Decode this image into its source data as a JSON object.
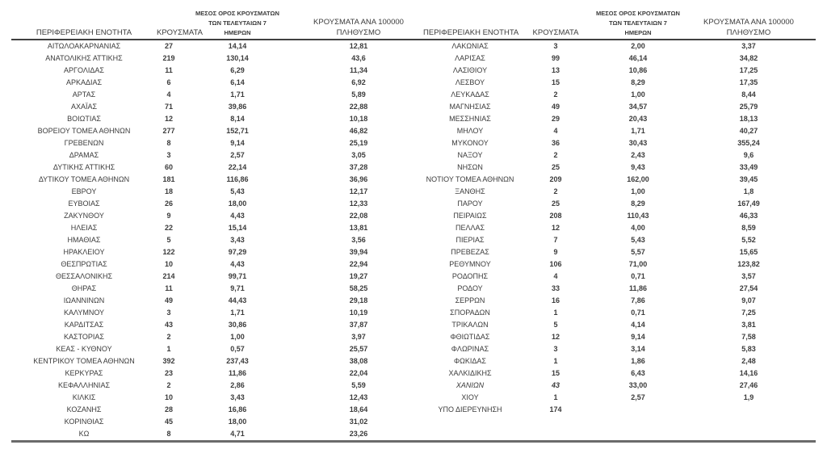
{
  "style": {
    "background": "#ffffff",
    "text_color": "#3b3b3b",
    "header_rule_color": "#404040",
    "bottom_rule_color": "#6b6b6b"
  },
  "headers": {
    "region": "ΠΕΡΙΦΕΡΕΙΑΚΗ ΕΝΟΤΗΤΑ",
    "cases": "ΚΡΟΥΣΜΑΤΑ",
    "avg7_lines": [
      "ΜΕΣΟΣ ΟΡΟΣ ΚΡΟΥΣΜΑΤΩΝ",
      "ΤΩΝ ΤΕΛΕΥΤΑΙΩΝ 7",
      "ΗΜΕΡΩΝ"
    ],
    "per100k_lines": [
      "ΚΡΟΥΣΜΑΤΑ ΑΝΑ 100000",
      "ΠΛΗΘΥΣΜΟ"
    ]
  },
  "left_table": {
    "rows": [
      {
        "region": "ΑΙΤΩΛΟΑΚΑΡΝΑΝΙΑΣ",
        "cases": "27",
        "avg7": "14,14",
        "per100k": "12,81"
      },
      {
        "region": "ΑΝΑΤΟΛΙΚΗΣ ΑΤΤΙΚΗΣ",
        "cases": "219",
        "avg7": "130,14",
        "per100k": "43,6"
      },
      {
        "region": "ΑΡΓΟΛΙΔΑΣ",
        "cases": "11",
        "avg7": "6,29",
        "per100k": "11,34"
      },
      {
        "region": "ΑΡΚΑΔΙΑΣ",
        "cases": "6",
        "avg7": "6,14",
        "per100k": "6,92"
      },
      {
        "region": "ΑΡΤΑΣ",
        "cases": "4",
        "avg7": "1,71",
        "per100k": "5,89"
      },
      {
        "region": "ΑΧΑΪΑΣ",
        "cases": "71",
        "avg7": "39,86",
        "per100k": "22,88"
      },
      {
        "region": "ΒΟΙΩΤΙΑΣ",
        "cases": "12",
        "avg7": "8,14",
        "per100k": "10,18"
      },
      {
        "region": "ΒΟΡΕΙΟΥ ΤΟΜΕΑ ΑΘΗΝΩΝ",
        "cases": "277",
        "avg7": "152,71",
        "per100k": "46,82"
      },
      {
        "region": "ΓΡΕΒΕΝΩΝ",
        "cases": "8",
        "avg7": "9,14",
        "per100k": "25,19"
      },
      {
        "region": "ΔΡΑΜΑΣ",
        "cases": "3",
        "avg7": "2,57",
        "per100k": "3,05"
      },
      {
        "region": "ΔΥΤΙΚΗΣ ΑΤΤΙΚΗΣ",
        "cases": "60",
        "avg7": "22,14",
        "per100k": "37,28"
      },
      {
        "region": "ΔΥΤΙΚΟΥ ΤΟΜΕΑ ΑΘΗΝΩΝ",
        "cases": "181",
        "avg7": "116,86",
        "per100k": "36,96"
      },
      {
        "region": "ΕΒΡΟΥ",
        "cases": "18",
        "avg7": "5,43",
        "per100k": "12,17"
      },
      {
        "region": "ΕΥΒΟΙΑΣ",
        "cases": "26",
        "avg7": "18,00",
        "per100k": "12,33"
      },
      {
        "region": "ΖΑΚΥΝΘΟΥ",
        "cases": "9",
        "avg7": "4,43",
        "per100k": "22,08"
      },
      {
        "region": "ΗΛΕΙΑΣ",
        "cases": "22",
        "avg7": "15,14",
        "per100k": "13,81"
      },
      {
        "region": "ΗΜΑΘΙΑΣ",
        "cases": "5",
        "avg7": "3,43",
        "per100k": "3,56"
      },
      {
        "region": "ΗΡΑΚΛΕΙΟΥ",
        "cases": "122",
        "avg7": "97,29",
        "per100k": "39,94"
      },
      {
        "region": "ΘΕΣΠΡΩΤΙΑΣ",
        "cases": "10",
        "avg7": "4,43",
        "per100k": "22,94"
      },
      {
        "region": "ΘΕΣΣΑΛΟΝΙΚΗΣ",
        "cases": "214",
        "avg7": "99,71",
        "per100k": "19,27"
      },
      {
        "region": "ΘΗΡΑΣ",
        "cases": "11",
        "avg7": "9,71",
        "per100k": "58,25"
      },
      {
        "region": "ΙΩΑΝΝΙΝΩΝ",
        "cases": "49",
        "avg7": "44,43",
        "per100k": "29,18"
      },
      {
        "region": "ΚΑΛΥΜΝΟΥ",
        "cases": "3",
        "avg7": "1,71",
        "per100k": "10,19"
      },
      {
        "region": "ΚΑΡΔΙΤΣΑΣ",
        "cases": "43",
        "avg7": "30,86",
        "per100k": "37,87"
      },
      {
        "region": "ΚΑΣΤΟΡΙΑΣ",
        "cases": "2",
        "avg7": "1,00",
        "per100k": "3,97"
      },
      {
        "region": "ΚΕΑΣ - ΚΥΘΝΟΥ",
        "cases": "1",
        "avg7": "0,57",
        "per100k": "25,57"
      },
      {
        "region": "ΚΕΝΤΡΙΚΟΥ ΤΟΜΕΑ ΑΘΗΝΩΝ",
        "cases": "392",
        "avg7": "237,43",
        "per100k": "38,08"
      },
      {
        "region": "ΚΕΡΚΥΡΑΣ",
        "cases": "23",
        "avg7": "11,86",
        "per100k": "22,04"
      },
      {
        "region": "ΚΕΦΑΛΛΗΝΙΑΣ",
        "cases": "2",
        "avg7": "2,86",
        "per100k": "5,59"
      },
      {
        "region": "ΚΙΛΚΙΣ",
        "cases": "10",
        "avg7": "3,43",
        "per100k": "12,43"
      },
      {
        "region": "ΚΟΖΑΝΗΣ",
        "cases": "28",
        "avg7": "16,86",
        "per100k": "18,64"
      },
      {
        "region": "ΚΟΡΙΝΘΙΑΣ",
        "cases": "45",
        "avg7": "18,00",
        "per100k": "31,02"
      },
      {
        "region": "ΚΩ",
        "cases": "8",
        "avg7": "4,71",
        "per100k": "23,26"
      }
    ]
  },
  "right_table": {
    "rows": [
      {
        "region": "ΛΑΚΩΝΙΑΣ",
        "cases": "3",
        "avg7": "2,00",
        "per100k": "3,37"
      },
      {
        "region": "ΛΑΡΙΣΑΣ",
        "cases": "99",
        "avg7": "46,14",
        "per100k": "34,82"
      },
      {
        "region": "ΛΑΣΙΘΙΟΥ",
        "cases": "13",
        "avg7": "10,86",
        "per100k": "17,25"
      },
      {
        "region": "ΛΕΣΒΟΥ",
        "cases": "15",
        "avg7": "8,29",
        "per100k": "17,35"
      },
      {
        "region": "ΛΕΥΚΑΔΑΣ",
        "cases": "2",
        "avg7": "1,00",
        "per100k": "8,44"
      },
      {
        "region": "ΜΑΓΝΗΣΙΑΣ",
        "cases": "49",
        "avg7": "34,57",
        "per100k": "25,79"
      },
      {
        "region": "ΜΕΣΣΗΝΙΑΣ",
        "cases": "29",
        "avg7": "20,43",
        "per100k": "18,13"
      },
      {
        "region": "ΜΗΛΟΥ",
        "cases": "4",
        "avg7": "1,71",
        "per100k": "40,27"
      },
      {
        "region": "ΜΥΚΟΝΟΥ",
        "cases": "36",
        "avg7": "30,43",
        "per100k": "355,24"
      },
      {
        "region": "ΝΑΞΟΥ",
        "cases": "2",
        "avg7": "2,43",
        "per100k": "9,6"
      },
      {
        "region": "ΝΗΣΩΝ",
        "cases": "25",
        "avg7": "9,43",
        "per100k": "33,49"
      },
      {
        "region": "ΝΟΤΙΟΥ ΤΟΜΕΑ ΑΘΗΝΩΝ",
        "cases": "209",
        "avg7": "162,00",
        "per100k": "39,45"
      },
      {
        "region": "ΞΑΝΘΗΣ",
        "cases": "2",
        "avg7": "1,00",
        "per100k": "1,8"
      },
      {
        "region": "ΠΑΡΟΥ",
        "cases": "25",
        "avg7": "8,29",
        "per100k": "167,49"
      },
      {
        "region": "ΠΕΙΡΑΙΩΣ",
        "cases": "208",
        "avg7": "110,43",
        "per100k": "46,33"
      },
      {
        "region": "ΠΕΛΛΑΣ",
        "cases": "12",
        "avg7": "4,00",
        "per100k": "8,59"
      },
      {
        "region": "ΠΙΕΡΙΑΣ",
        "cases": "7",
        "avg7": "5,43",
        "per100k": "5,52"
      },
      {
        "region": "ΠΡΕΒΕΖΑΣ",
        "cases": "9",
        "avg7": "5,57",
        "per100k": "15,65"
      },
      {
        "region": "ΡΕΘΥΜΝΟΥ",
        "cases": "106",
        "avg7": "71,00",
        "per100k": "123,82"
      },
      {
        "region": "ΡΟΔΟΠΗΣ",
        "cases": "4",
        "avg7": "0,71",
        "per100k": "3,57"
      },
      {
        "region": "ΡΟΔΟΥ",
        "cases": "33",
        "avg7": "11,86",
        "per100k": "27,54"
      },
      {
        "region": "ΣΕΡΡΩΝ",
        "cases": "16",
        "avg7": "7,86",
        "per100k": "9,07"
      },
      {
        "region": "ΣΠΟΡΑΔΩΝ",
        "cases": "1",
        "avg7": "0,71",
        "per100k": "7,25"
      },
      {
        "region": "ΤΡΙΚΑΛΩΝ",
        "cases": "5",
        "avg7": "4,14",
        "per100k": "3,81"
      },
      {
        "region": "ΦΘΙΩΤΙΔΑΣ",
        "cases": "12",
        "avg7": "9,14",
        "per100k": "7,58"
      },
      {
        "region": "ΦΛΩΡΙΝΑΣ",
        "cases": "3",
        "avg7": "3,14",
        "per100k": "5,83"
      },
      {
        "region": "ΦΩΚΙΔΑΣ",
        "cases": "1",
        "avg7": "1,86",
        "per100k": "2,48"
      },
      {
        "region": "ΧΑΛΚΙΔΙΚΗΣ",
        "cases": "15",
        "avg7": "6,43",
        "per100k": "14,16"
      },
      {
        "region": "ΧΑΝΙΩΝ",
        "cases": "43",
        "avg7": "33,00",
        "per100k": "27,46",
        "italic": true
      },
      {
        "region": "ΧΙΟΥ",
        "cases": "1",
        "avg7": "2,57",
        "per100k": "1,9"
      },
      {
        "region": "ΥΠΟ ΔΙΕΡΕΥΝΗΣΗ",
        "cases": "174",
        "avg7": "",
        "per100k": ""
      }
    ]
  }
}
